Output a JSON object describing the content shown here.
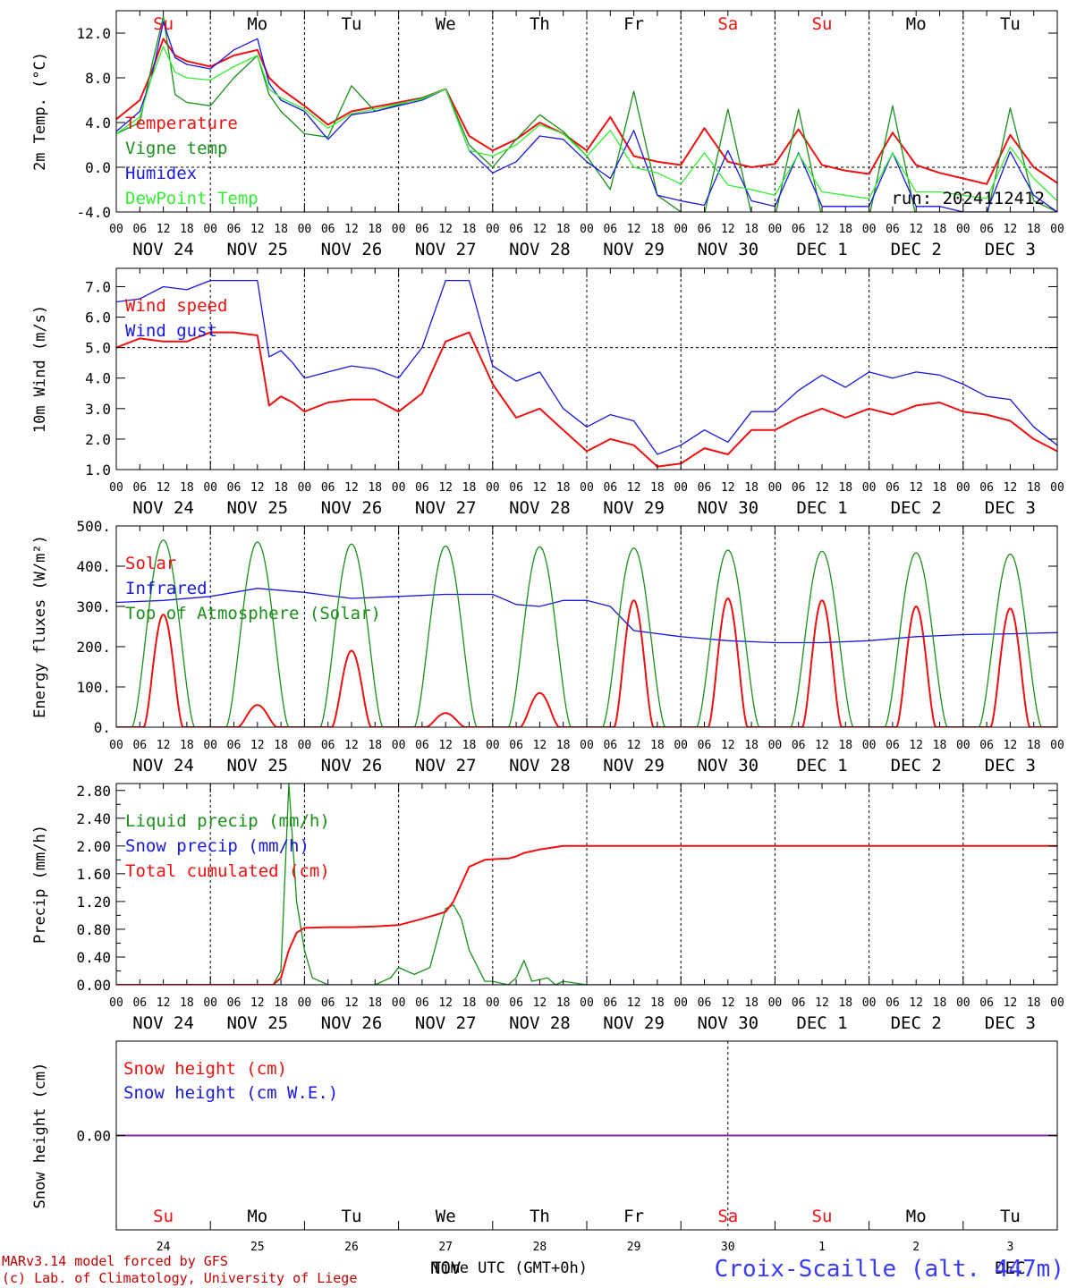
{
  "colors": {
    "red": "#ee1010",
    "darkgreen": "#1a8f1a",
    "blue": "#1818e0",
    "lightgreen": "#33ee33",
    "purple": "#8a2aa0",
    "weekend": "#ee1010"
  },
  "x_ticks": [
    "00",
    "06",
    "12",
    "18",
    "00",
    "06",
    "12",
    "18",
    "00",
    "06",
    "12",
    "18",
    "00",
    "06",
    "12",
    "18",
    "00",
    "06",
    "12",
    "18",
    "00",
    "06",
    "12",
    "18",
    "00",
    "06",
    "12",
    "18",
    "00",
    "06",
    "12",
    "18",
    "00",
    "06",
    "12",
    "18",
    "00",
    "06",
    "12",
    "18",
    "00"
  ],
  "date_labels": [
    "NOV 24",
    "NOV 25",
    "NOV 26",
    "NOV 27",
    "NOV 28",
    "NOV 29",
    "NOV 30",
    "DEC  1",
    "DEC  2",
    "DEC  3"
  ],
  "day_labels": [
    {
      "text": "Su",
      "weekend": true
    },
    {
      "text": "Mo",
      "weekend": false
    },
    {
      "text": "Tu",
      "weekend": false
    },
    {
      "text": "We",
      "weekend": false
    },
    {
      "text": "Th",
      "weekend": false
    },
    {
      "text": "Fr",
      "weekend": false
    },
    {
      "text": "Sa",
      "weekend": true
    },
    {
      "text": "Su",
      "weekend": true
    },
    {
      "text": "Mo",
      "weekend": false
    },
    {
      "text": "Tu",
      "weekend": false
    }
  ],
  "bottom_day_numbers": [
    "24",
    "25",
    "26",
    "27",
    "28",
    "29",
    "30",
    "1",
    "2",
    "3"
  ],
  "bottom_month_markers": [
    {
      "text": "NOV",
      "day_index": 3
    },
    {
      "text": "DEC",
      "day_index": 9
    }
  ],
  "footer": {
    "model": "MARv3.14 model forced by GFS",
    "copyright": "(c) Lab. of Climatology, University of Liege",
    "time_axis": "Time UTC (GMT+0h)",
    "station": "Croix-Scaille (alt. 447m)"
  },
  "chart_data": [
    {
      "type": "line",
      "ylabel": "2m Temp. (°C)",
      "ylim": [
        -4,
        14
      ],
      "yticks": [
        -4,
        0,
        4,
        8,
        12
      ],
      "ytick_labels": [
        "-4.0",
        "0.0",
        "4.0",
        "8.0",
        "12.0"
      ],
      "reference_line": 0,
      "annotation": "run: 2024112412",
      "x_hours": [
        0,
        6,
        9,
        12,
        15,
        18,
        24,
        30,
        36,
        39,
        42,
        48,
        54,
        60,
        66,
        72,
        78,
        84,
        90,
        96,
        102,
        108,
        114,
        120,
        126,
        132,
        138,
        144,
        150,
        156,
        162,
        168,
        174,
        180,
        186,
        192,
        198,
        204,
        210,
        216,
        222,
        228,
        234,
        240
      ],
      "series": [
        {
          "name": "Temperature",
          "color": "red",
          "values": [
            4.3,
            6.0,
            8.5,
            11.5,
            10.0,
            9.5,
            9.0,
            10.0,
            10.5,
            8.0,
            7.0,
            5.5,
            3.8,
            5.0,
            5.4,
            5.8,
            6.2,
            7.0,
            2.8,
            1.5,
            2.5,
            4.0,
            3.0,
            1.5,
            4.5,
            1.0,
            0.5,
            0.2,
            3.5,
            0.5,
            0.0,
            0.3,
            3.4,
            0.2,
            -0.3,
            -0.6,
            3.1,
            0.2,
            -0.5,
            -1.0,
            -1.5,
            2.9,
            0.0,
            -1.4
          ]
        },
        {
          "name": "Vigne temp",
          "color": "darkgreen",
          "values": [
            3.0,
            4.0,
            9.0,
            13.5,
            6.5,
            5.8,
            5.5,
            8.0,
            10.0,
            6.5,
            5.0,
            3.0,
            2.7,
            7.3,
            5.0,
            5.6,
            6.2,
            7.0,
            2.0,
            0.0,
            2.5,
            4.7,
            3.2,
            1.0,
            -2.0,
            6.8,
            -2.5,
            -4.0,
            -4.2,
            5.2,
            -4.2,
            -4.5,
            5.2,
            -4.5,
            -4.5,
            -4.5,
            5.5,
            -4.5,
            -4.5,
            -4.5,
            -4.5,
            5.3,
            -3.0,
            -4.0
          ]
        },
        {
          "name": "Humidex",
          "color": "blue",
          "values": [
            3.2,
            5.0,
            8.0,
            13.0,
            9.8,
            9.2,
            8.8,
            10.5,
            11.5,
            7.5,
            6.0,
            5.0,
            2.5,
            4.7,
            5.0,
            5.5,
            6.0,
            7.0,
            1.5,
            -0.5,
            0.5,
            2.8,
            2.5,
            0.5,
            -1.0,
            3.3,
            -2.5,
            -3.0,
            -3.4,
            1.5,
            -3.0,
            -3.5,
            1.3,
            -3.5,
            -3.5,
            -3.5,
            1.3,
            -3.5,
            -3.5,
            -4.0,
            -4.0,
            1.4,
            -2.5,
            -4.0
          ]
        },
        {
          "name": "DewPoint Temp",
          "color": "lightgreen",
          "values": [
            3.0,
            4.5,
            8.0,
            10.8,
            8.5,
            8.0,
            7.8,
            9.0,
            10.0,
            7.0,
            6.2,
            5.2,
            3.5,
            4.8,
            5.2,
            5.7,
            6.1,
            7.0,
            1.5,
            1.0,
            2.0,
            3.8,
            3.0,
            1.0,
            3.3,
            0.0,
            -0.5,
            -1.5,
            1.3,
            -1.6,
            -2.0,
            -2.5,
            1.2,
            -2.2,
            -2.5,
            -2.8,
            1.3,
            -2.2,
            -2.2,
            -2.5,
            -2.8,
            1.8,
            -1.0,
            -3.0
          ]
        }
      ]
    },
    {
      "type": "line",
      "ylabel": "10m Wind (m/s)",
      "ylim": [
        1,
        7.6
      ],
      "yticks": [
        1,
        2,
        3,
        4,
        5,
        6,
        7
      ],
      "ytick_labels": [
        "1.0",
        "2.0",
        "3.0",
        "4.0",
        "5.0",
        "6.0",
        "7.0"
      ],
      "reference_line": 5,
      "x_hours": [
        0,
        6,
        12,
        18,
        24,
        30,
        36,
        39,
        42,
        45,
        48,
        54,
        60,
        66,
        72,
        78,
        84,
        90,
        96,
        102,
        108,
        114,
        120,
        126,
        132,
        138,
        144,
        150,
        156,
        162,
        168,
        174,
        180,
        186,
        192,
        198,
        204,
        210,
        216,
        222,
        228,
        234,
        240
      ],
      "series": [
        {
          "name": "Wind speed",
          "color": "red",
          "values": [
            5.0,
            5.3,
            5.2,
            5.2,
            5.5,
            5.5,
            5.4,
            3.1,
            3.4,
            3.2,
            2.9,
            3.2,
            3.3,
            3.3,
            2.9,
            3.5,
            5.2,
            5.5,
            3.8,
            2.7,
            3.0,
            2.3,
            1.6,
            2.0,
            1.8,
            1.1,
            1.2,
            1.7,
            1.5,
            2.3,
            2.3,
            2.7,
            3.0,
            2.7,
            3.0,
            2.8,
            3.1,
            3.2,
            2.9,
            2.8,
            2.6,
            2.0,
            1.6
          ]
        },
        {
          "name": "Wind gust",
          "color": "blue",
          "values": [
            6.5,
            6.6,
            7.0,
            6.9,
            7.2,
            7.2,
            7.2,
            4.7,
            4.9,
            4.5,
            4.0,
            4.2,
            4.4,
            4.3,
            4.0,
            5.0,
            7.2,
            7.2,
            4.4,
            3.9,
            4.2,
            3.0,
            2.4,
            2.8,
            2.6,
            1.5,
            1.8,
            2.3,
            1.9,
            2.9,
            2.9,
            3.6,
            4.1,
            3.7,
            4.2,
            4.0,
            4.2,
            4.1,
            3.8,
            3.4,
            3.3,
            2.4,
            1.8
          ]
        }
      ]
    },
    {
      "type": "line",
      "ylabel": "Energy fluxes (W/m²)",
      "ylim": [
        0,
        500
      ],
      "yticks": [
        0,
        100,
        200,
        300,
        400,
        500
      ],
      "ytick_labels": [
        "0.",
        "100.",
        "200.",
        "300.",
        "400.",
        "500."
      ],
      "series": [
        {
          "name": "Solar",
          "color": "red",
          "peaks": [
            280,
            55,
            190,
            35,
            85,
            315,
            320,
            315,
            300,
            295
          ]
        },
        {
          "name": "Infrared",
          "color": "blue",
          "x_hours": [
            0,
            12,
            24,
            36,
            48,
            60,
            72,
            84,
            96,
            102,
            108,
            114,
            120,
            126,
            132,
            144,
            156,
            168,
            180,
            192,
            204,
            216,
            228,
            240
          ],
          "values": [
            310,
            315,
            325,
            345,
            335,
            320,
            325,
            330,
            330,
            305,
            300,
            315,
            315,
            300,
            240,
            225,
            215,
            210,
            210,
            215,
            225,
            230,
            232,
            235
          ]
        },
        {
          "name": "Top of Atmosphere (Solar)",
          "color": "darkgreen",
          "peaks": [
            465,
            460,
            455,
            450,
            448,
            445,
            440,
            437,
            433,
            430
          ]
        }
      ]
    },
    {
      "type": "line",
      "ylabel": "Precip (mm/h)",
      "ylim": [
        0,
        2.9
      ],
      "yticks": [
        0,
        0.4,
        0.8,
        1.2,
        1.6,
        2.0,
        2.4,
        2.8
      ],
      "ytick_labels": [
        "0.00",
        "0.40",
        "0.80",
        "1.20",
        "1.60",
        "2.00",
        "2.40",
        "2.80"
      ],
      "minor_yticks": [
        0.2,
        0.6,
        1.0,
        1.4,
        1.8,
        2.2,
        2.6
      ],
      "series": [
        {
          "name": "Liquid precip (mm/h)",
          "color": "darkgreen",
          "x_hours": [
            0,
            40,
            42,
            44,
            46,
            48,
            50,
            54,
            60,
            66,
            70,
            72,
            76,
            80,
            84,
            86,
            88,
            90,
            94,
            96,
            100,
            102,
            104,
            106,
            110,
            112,
            114,
            120,
            240
          ],
          "values": [
            0,
            0,
            0.2,
            2.9,
            1.2,
            0.5,
            0.1,
            0,
            0,
            0,
            0.1,
            0.25,
            0.15,
            0.25,
            1.1,
            1.15,
            0.95,
            0.5,
            0.05,
            0.05,
            0,
            0.1,
            0.35,
            0.05,
            0.1,
            0,
            0.05,
            0,
            0
          ]
        },
        {
          "name": "Snow precip (mm/h)",
          "color": "blue",
          "x_hours": [
            0,
            240
          ],
          "values": [
            0,
            0
          ]
        },
        {
          "name": "Total cumulated (cm)",
          "color": "red",
          "x_hours": [
            0,
            40,
            42,
            44,
            46,
            48,
            54,
            60,
            66,
            72,
            78,
            84,
            86,
            88,
            90,
            94,
            96,
            100,
            102,
            104,
            108,
            114,
            120,
            240
          ],
          "values": [
            0,
            0,
            0.1,
            0.5,
            0.75,
            0.82,
            0.83,
            0.83,
            0.84,
            0.86,
            0.95,
            1.05,
            1.2,
            1.45,
            1.7,
            1.8,
            1.81,
            1.82,
            1.85,
            1.9,
            1.95,
            2.0,
            2.0,
            2.0
          ]
        }
      ]
    },
    {
      "type": "line",
      "ylabel": "Snow height (cm)",
      "ylim": [
        -1,
        1
      ],
      "yticks": [
        0
      ],
      "ytick_labels": [
        "0.00"
      ],
      "series": [
        {
          "name": "Snow height (cm)",
          "color": "red",
          "x_hours": [
            0,
            240
          ],
          "values": [
            0,
            0
          ]
        },
        {
          "name": "Snow height (cm W.E.)",
          "color": "blue",
          "x_hours": [
            0,
            240
          ],
          "values": [
            0,
            0
          ]
        }
      ]
    }
  ]
}
